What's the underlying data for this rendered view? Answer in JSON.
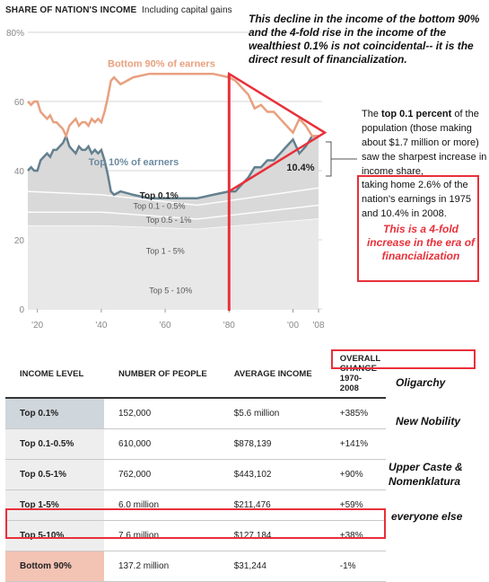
{
  "chart_data": {
    "type": "area",
    "title": "SHARE OF NATION'S INCOME",
    "subtitle": "Including capital gains",
    "x_tick_labels": [
      "'20",
      "'40",
      "'60",
      "'80",
      "'00",
      "'08"
    ],
    "x_ticks": [
      1920,
      1940,
      1960,
      1980,
      2000,
      2008
    ],
    "y_tick_labels": [
      "0",
      "20",
      "40",
      "60",
      "80%"
    ],
    "y_ticks": [
      0,
      20,
      40,
      60,
      80
    ],
    "xlim": [
      1917,
      2008
    ],
    "ylim": [
      0,
      80
    ],
    "grid": true,
    "series": [
      {
        "name": "Bottom 90% of earners",
        "type": "line",
        "x": [
          1917,
          1918,
          1919,
          1920,
          1921,
          1922,
          1923,
          1924,
          1925,
          1926,
          1927,
          1928,
          1929,
          1930,
          1931,
          1932,
          1933,
          1934,
          1935,
          1936,
          1937,
          1938,
          1939,
          1940,
          1941,
          1942,
          1943,
          1944,
          1946,
          1950,
          1955,
          1960,
          1965,
          1970,
          1975,
          1980,
          1982,
          1984,
          1986,
          1988,
          1990,
          1992,
          1994,
          1996,
          1998,
          2000,
          2002,
          2004,
          2006,
          2008
        ],
        "values": [
          60,
          59,
          60,
          60,
          57,
          56,
          55,
          56,
          54,
          54,
          53,
          52,
          50,
          53,
          54,
          55,
          53,
          54,
          54,
          53,
          55,
          54,
          55,
          54,
          57,
          61,
          66,
          67,
          65,
          67,
          68,
          68,
          68,
          68,
          68,
          67,
          66,
          64,
          62,
          58,
          59,
          57,
          57,
          55,
          53,
          51,
          55,
          53,
          50,
          50
        ]
      },
      {
        "name": "Top 10% of earners",
        "type": "area",
        "x": [
          1917,
          1918,
          1919,
          1920,
          1921,
          1922,
          1923,
          1924,
          1925,
          1926,
          1927,
          1928,
          1929,
          1930,
          1931,
          1932,
          1933,
          1934,
          1935,
          1936,
          1937,
          1938,
          1939,
          1940,
          1941,
          1942,
          1943,
          1944,
          1946,
          1950,
          1955,
          1960,
          1965,
          1970,
          1975,
          1980,
          1982,
          1984,
          1986,
          1988,
          1990,
          1992,
          1994,
          1996,
          1998,
          2000,
          2002,
          2004,
          2006,
          2008
        ],
        "values": [
          40,
          41,
          40,
          40,
          43,
          44,
          45,
          44,
          46,
          46,
          47,
          48,
          50,
          47,
          46,
          45,
          47,
          46,
          46,
          47,
          45,
          46,
          45,
          46,
          43,
          39,
          34,
          33,
          34,
          33,
          32,
          32,
          32,
          32,
          33,
          34,
          34,
          36,
          38,
          41,
          41,
          43,
          43,
          45,
          47,
          49,
          45,
          47,
          50,
          50
        ]
      },
      {
        "name": "Top 0.1%",
        "x": [
          1917,
          1920,
          1928,
          1932,
          1940,
          1950,
          1970,
          1975,
          1980,
          1990,
          2000,
          2008
        ],
        "values": [
          7,
          5,
          12,
          4,
          5,
          3,
          3,
          2.6,
          3,
          5,
          9,
          10.4
        ]
      },
      {
        "name": "Top 0.1 - 0.5%",
        "x": [
          1917,
          1940,
          1970,
          2008
        ],
        "values": [
          6,
          5,
          4,
          5
        ]
      },
      {
        "name": "Top 0.5 - 1%",
        "x": [
          1917,
          1940,
          1970,
          2008
        ],
        "values": [
          4,
          4,
          3,
          4
        ]
      },
      {
        "name": "Top 1 - 5%",
        "x": [
          1917,
          1940,
          1970,
          2008
        ],
        "values": [
          13,
          13,
          12,
          14
        ]
      },
      {
        "name": "Top 5 - 10%",
        "x": [
          1917,
          1940,
          1970,
          2008
        ],
        "values": [
          11,
          11,
          11,
          12
        ]
      }
    ],
    "legend_labels": [
      {
        "text": "Bottom 90% of earners",
        "color": "#e8a07f"
      },
      {
        "text": "Top 10% of earners",
        "color": "#6c8ba0"
      },
      {
        "text": "Top 0.1%",
        "color": "#222222"
      },
      {
        "text": "Top 0.1 - 0.5%",
        "color": "#555555"
      },
      {
        "text": "Top 0.5 - 1%",
        "color": "#555555"
      },
      {
        "text": "Top 1 - 5%",
        "color": "#555555"
      },
      {
        "text": "Top 5 - 10%",
        "color": "#555555"
      }
    ],
    "annotations": [
      "10.4%"
    ],
    "colors": {
      "bottom90": "#e8a07f",
      "top10_line": "#63808f",
      "top10_area": "#d9d9d9",
      "highlight": "#e8303a"
    }
  },
  "headline": "This decline in the income of the bottom 90% and the 4-fold rise in the income of the wealthiest 0.1% is not coincidental-- it is the direct result of financialization.",
  "note": {
    "lead": "The ",
    "bold": "top 0.1 percent",
    "rest": " of the population (those making about $1.7 million or more) saw the sharpest increase in income share, ",
    "box_text": "taking home 2.6% of the nation's earnings in 1975 and 10.4% in 2008.",
    "box_italic": "This is a 4-fold increase in the era of financialization"
  },
  "table": {
    "headers": [
      "INCOME LEVEL",
      "NUMBER OF PEOPLE",
      "AVERAGE INCOME",
      "OVERALL CHANGE 1970-2008"
    ],
    "rows": [
      {
        "level": "Top 0.1%",
        "people": "152,000",
        "income": "$5.6 million",
        "change": "+385%",
        "bg": "#cfd6dc"
      },
      {
        "level": "Top 0.1-0.5%",
        "people": "610,000",
        "income": "$878,139",
        "change": "+141%",
        "bg": "#eeeeee"
      },
      {
        "level": "Top 0.5-1%",
        "people": "762,000",
        "income": "$443,102",
        "change": "+90%",
        "bg": "#eeeeee"
      },
      {
        "level": "Top 1-5%",
        "people": "6.0 million",
        "income": "$211,476",
        "change": "+59%",
        "bg": "#eeeeee"
      },
      {
        "level": "Top 5-10%",
        "people": "7.6 million",
        "income": "$127,184",
        "change": "+38%",
        "bg": "#eeeeee"
      },
      {
        "level": "Bottom 90%",
        "people": "137.2 million",
        "income": "$31,244",
        "change": "-1%",
        "bg": "#f3c3b4"
      }
    ]
  },
  "side_labels": [
    "Oligarchy",
    "New Nobility",
    "Upper Caste &",
    "Nomenklatura",
    "everyone else"
  ]
}
